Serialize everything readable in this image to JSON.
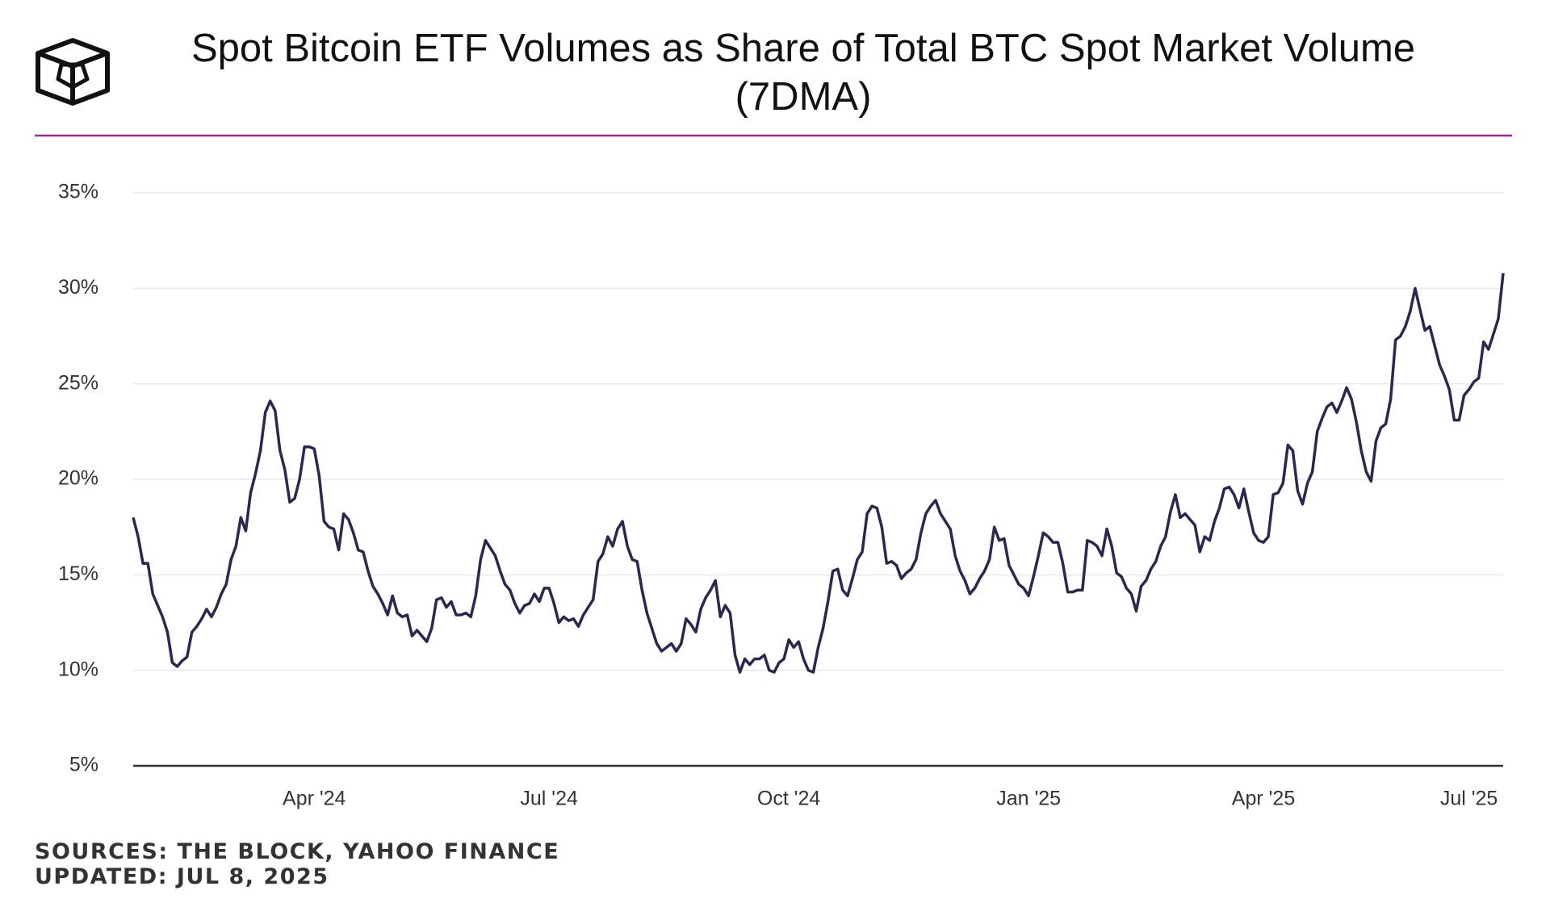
{
  "chart_data": {
    "type": "line",
    "title": "Spot Bitcoin ETF Volumes as Share of Total BTC Spot Market Volume (7DMA)",
    "categories": [
      null,
      null,
      null,
      null,
      null,
      null,
      null,
      null,
      null,
      null,
      null,
      null,
      null,
      null,
      null,
      null,
      null,
      null,
      null,
      null,
      null,
      null,
      null,
      null,
      null,
      null,
      null,
      null,
      null,
      null,
      null,
      null,
      null,
      null,
      null,
      null,
      null,
      "Apr '24",
      null,
      null,
      null,
      null,
      null,
      null,
      null,
      null,
      null,
      null,
      null,
      null,
      null,
      null,
      null,
      null,
      null,
      null,
      null,
      null,
      null,
      null,
      null,
      null,
      null,
      null,
      null,
      null,
      null,
      null,
      null,
      null,
      null,
      null,
      null,
      null,
      null,
      null,
      null,
      null,
      null,
      null,
      null,
      null,
      null,
      null,
      null,
      "Jul '24",
      null,
      null,
      null,
      null,
      null,
      null,
      null,
      null,
      null,
      null,
      null,
      null,
      null,
      null,
      null,
      null,
      null,
      null,
      null,
      null,
      null,
      null,
      null,
      null,
      null,
      null,
      null,
      null,
      null,
      null,
      null,
      null,
      null,
      null,
      null,
      null,
      null,
      null,
      null,
      null,
      null,
      null,
      null,
      null,
      null,
      null,
      null,
      null,
      "Oct '24",
      null,
      null,
      null,
      null,
      null,
      null,
      null,
      null,
      null,
      null,
      null,
      null,
      null,
      null,
      null,
      null,
      null,
      null,
      null,
      null,
      null,
      null,
      null,
      null,
      null,
      null,
      null,
      null,
      null,
      null,
      null,
      null,
      null,
      null,
      null,
      null,
      null,
      null,
      null,
      null,
      null,
      null,
      null,
      null,
      null,
      null,
      null,
      null,
      "Jan '25",
      null,
      null,
      null,
      null,
      null,
      null,
      null,
      null,
      null,
      null,
      null,
      null,
      null,
      null,
      null,
      null,
      null,
      null,
      null,
      null,
      null,
      null,
      null,
      null,
      null,
      null,
      null,
      null,
      null,
      null,
      null,
      null,
      null,
      null,
      null,
      null,
      null,
      null,
      null,
      null,
      null,
      null,
      null,
      null,
      null,
      null,
      null,
      "Apr '25",
      null,
      null,
      null,
      null,
      null,
      null,
      null,
      null,
      null,
      null,
      null,
      null,
      null,
      null,
      null,
      null,
      null,
      null,
      null,
      null,
      null,
      null,
      null,
      null,
      null,
      null,
      null,
      null,
      null,
      null,
      null,
      null,
      null,
      null,
      null,
      null,
      null,
      null,
      null,
      null,
      null,
      "Jul '25",
      null,
      null,
      null,
      null,
      null,
      null,
      null
    ],
    "values": [
      18.0,
      17.0,
      15.6,
      15.6,
      14.0,
      13.4,
      12.8,
      12.0,
      10.4,
      10.2,
      10.5,
      10.7,
      12.0,
      12.3,
      12.7,
      13.2,
      12.8,
      13.3,
      14.0,
      14.5,
      15.8,
      16.5,
      18.0,
      17.3,
      19.3,
      20.3,
      21.5,
      23.5,
      24.1,
      23.6,
      21.5,
      20.5,
      18.8,
      19.0,
      20.0,
      21.7,
      21.7,
      21.6,
      20.2,
      17.8,
      17.5,
      17.4,
      16.3,
      18.2,
      17.9,
      17.2,
      16.3,
      16.2,
      15.2,
      14.4,
      14.0,
      13.5,
      12.9,
      13.9,
      13.0,
      12.8,
      12.9,
      11.8,
      12.1,
      11.8,
      11.5,
      12.2,
      13.7,
      13.8,
      13.3,
      13.6,
      12.9,
      12.9,
      13.0,
      12.8,
      13.9,
      15.8,
      16.8,
      16.4,
      16.0,
      15.2,
      14.5,
      14.2,
      13.5,
      13.0,
      13.4,
      13.5,
      14.0,
      13.6,
      14.3,
      14.3,
      13.5,
      12.5,
      12.8,
      12.6,
      12.7,
      12.3,
      12.9,
      13.3,
      13.7,
      15.7,
      16.1,
      17.0,
      16.5,
      17.4,
      17.8,
      16.5,
      15.8,
      15.7,
      14.2,
      13.0,
      12.2,
      11.4,
      11.0,
      11.2,
      11.4,
      11.0,
      11.4,
      12.7,
      12.4,
      12.0,
      13.2,
      13.8,
      14.2,
      14.7,
      12.8,
      13.4,
      13.0,
      10.8,
      9.9,
      10.6,
      10.3,
      10.6,
      10.6,
      10.8,
      10.0,
      9.9,
      10.4,
      10.6,
      11.6,
      11.2,
      11.5,
      10.6,
      10.0,
      9.9,
      11.2,
      12.2,
      13.6,
      15.2,
      15.3,
      14.2,
      13.9,
      14.8,
      15.8,
      16.2,
      18.2,
      18.6,
      18.5,
      17.5,
      15.6,
      15.7,
      15.5,
      14.8,
      15.1,
      15.3,
      15.8,
      17.2,
      18.2,
      18.6,
      18.9,
      18.2,
      17.8,
      17.4,
      16.0,
      15.2,
      14.7,
      14.0,
      14.3,
      14.8,
      15.2,
      15.8,
      17.5,
      16.8,
      16.9,
      15.5,
      15.0,
      14.5,
      14.3,
      13.9,
      14.9,
      16.0,
      17.2,
      17.0,
      16.7,
      16.7,
      15.6,
      14.1,
      14.1,
      14.2,
      14.2,
      16.8,
      16.7,
      16.5,
      16.0,
      17.4,
      16.5,
      15.1,
      14.9,
      14.3,
      14.0,
      13.1,
      14.4,
      14.7,
      15.3,
      15.7,
      16.5,
      17.0,
      18.3,
      19.2,
      18.0,
      18.2,
      17.9,
      17.6,
      16.2,
      17.0,
      16.8,
      17.8,
      18.5,
      19.5,
      19.6,
      19.2,
      18.5,
      19.5,
      18.3,
      17.2,
      16.8,
      16.7,
      17.0,
      19.2,
      19.3,
      19.8,
      21.8,
      21.5,
      19.4,
      18.7,
      19.8,
      20.4,
      22.5,
      23.2,
      23.8,
      24.0,
      23.5,
      24.1,
      24.8,
      24.2,
      23.0,
      21.5,
      20.4,
      19.9,
      22.0,
      22.7,
      22.9,
      24.2,
      27.3,
      27.5,
      28.0,
      28.8,
      30.0,
      28.9,
      27.8,
      28.0,
      27.0,
      26.0,
      25.4,
      24.7,
      23.1,
      23.1,
      24.4,
      24.7,
      25.1,
      25.3,
      27.2,
      26.8,
      27.6,
      28.4,
      30.8
    ],
    "color": "#2b2752",
    "ylim": [
      5,
      35
    ],
    "yticks": [
      {
        "value": 5,
        "label": "5%"
      },
      {
        "value": 10,
        "label": "10%"
      },
      {
        "value": 15,
        "label": "15%"
      },
      {
        "value": 20,
        "label": "20%"
      },
      {
        "value": 25,
        "label": "25%"
      },
      {
        "value": 30,
        "label": "30%"
      },
      {
        "value": 35,
        "label": "35%"
      }
    ],
    "grid": true
  },
  "footer": {
    "sources": "SOURCES: THE BLOCK, YAHOO FINANCE",
    "updated": "UPDATED: JUL 8, 2025"
  }
}
